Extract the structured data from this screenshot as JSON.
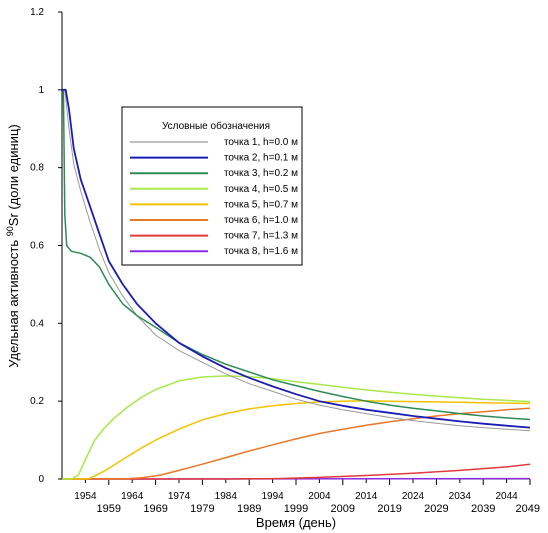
{
  "chart_data": {
    "type": "line",
    "title": "",
    "xlabel": "Время (день)",
    "ylabel_prefix": "Удельная активность ",
    "ylabel_sup": "90",
    "ylabel_suffix": "Sr (доли единиц)",
    "xlim": [
      1949,
      2049
    ],
    "ylim": [
      0,
      1.2
    ],
    "yticks": [
      "0",
      "0.2",
      "0.4",
      "0.6",
      "0.8",
      "1",
      "1.2"
    ],
    "xticks_minor": [
      "1954",
      "1964",
      "1974",
      "1984",
      "1994",
      "2004",
      "2014",
      "2024",
      "2034",
      "2044"
    ],
    "xticks_major": [
      "1959",
      "1969",
      "1979",
      "1989",
      "1999",
      "2009",
      "2019",
      "2029",
      "2039",
      "2049"
    ],
    "legend": {
      "title": "Условные обозначения",
      "position": "center-upper",
      "entries": [
        "точка 1, h=0.0 м",
        "точка 2, h=0.1 м",
        "точка 3, h=0.2 м",
        "точка 4, h=0.5 м",
        "точка 5, h=0.7 м",
        "точка 6, h=1.0 м",
        "точка 7, h=1.3 м",
        "точка 8, h=1.6 м"
      ]
    },
    "series": [
      {
        "name": "точка 1, h=0.0 м",
        "color": "#9a9a9a",
        "x": [
          1949,
          1949.6,
          1950.5,
          1951.5,
          1953,
          1955,
          1957,
          1959,
          1962,
          1965,
          1969,
          1974,
          1979,
          1984,
          1989,
          1994,
          1999,
          2004,
          2009,
          2014,
          2019,
          2024,
          2029,
          2034,
          2039,
          2044,
          2049
        ],
        "y": [
          1.0,
          1.0,
          0.9,
          0.81,
          0.74,
          0.66,
          0.59,
          0.53,
          0.47,
          0.42,
          0.37,
          0.33,
          0.3,
          0.27,
          0.245,
          0.225,
          0.205,
          0.19,
          0.178,
          0.168,
          0.158,
          0.15,
          0.143,
          0.137,
          0.132,
          0.128,
          0.124
        ]
      },
      {
        "name": "точка 2, h=0.1 м",
        "color": "#1c1cb5",
        "x": [
          1949,
          1949.8,
          1950.5,
          1951.5,
          1953,
          1955,
          1957,
          1959,
          1962,
          1965,
          1969,
          1974,
          1979,
          1984,
          1989,
          1994,
          1999,
          2004,
          2009,
          2014,
          2019,
          2024,
          2029,
          2034,
          2039,
          2044,
          2049
        ],
        "y": [
          1.0,
          1.0,
          0.95,
          0.85,
          0.77,
          0.7,
          0.63,
          0.56,
          0.5,
          0.45,
          0.4,
          0.35,
          0.315,
          0.285,
          0.26,
          0.238,
          0.218,
          0.2,
          0.188,
          0.178,
          0.17,
          0.162,
          0.155,
          0.148,
          0.142,
          0.137,
          0.132
        ]
      },
      {
        "name": "точка 3, h=0.2 м",
        "color": "#2e8b57",
        "x": [
          1949,
          1949.3,
          1949.6,
          1950,
          1951,
          1953,
          1955,
          1957,
          1959,
          1962,
          1965,
          1969,
          1974,
          1979,
          1984,
          1989,
          1994,
          1999,
          2004,
          2009,
          2014,
          2019,
          2024,
          2029,
          2034,
          2039,
          2044,
          2049
        ],
        "y": [
          1.0,
          1.0,
          0.68,
          0.6,
          0.585,
          0.58,
          0.57,
          0.545,
          0.5,
          0.45,
          0.42,
          0.39,
          0.35,
          0.32,
          0.295,
          0.275,
          0.255,
          0.24,
          0.225,
          0.212,
          0.2,
          0.19,
          0.182,
          0.175,
          0.168,
          0.162,
          0.157,
          0.153
        ]
      },
      {
        "name": "точка 4, h=0.5 м",
        "color": "#a8e84a",
        "x": [
          1949,
          1951,
          1952.5,
          1954,
          1956,
          1958,
          1960,
          1963,
          1966,
          1969,
          1974,
          1979,
          1984,
          1989,
          1994,
          1999,
          2004,
          2009,
          2014,
          2019,
          2024,
          2029,
          2034,
          2039,
          2044,
          2049
        ],
        "y": [
          0.0,
          0.0,
          0.01,
          0.05,
          0.1,
          0.13,
          0.155,
          0.185,
          0.21,
          0.23,
          0.252,
          0.262,
          0.265,
          0.263,
          0.258,
          0.25,
          0.243,
          0.236,
          0.229,
          0.223,
          0.218,
          0.213,
          0.209,
          0.205,
          0.202,
          0.199
        ]
      },
      {
        "name": "точка 5, h=0.7 м",
        "color": "#f2c200",
        "x": [
          1949,
          1954,
          1955,
          1958,
          1962,
          1966,
          1969,
          1974,
          1979,
          1984,
          1989,
          1994,
          1999,
          2004,
          2009,
          2014,
          2019,
          2024,
          2029,
          2034,
          2039,
          2044,
          2049
        ],
        "y": [
          0.0,
          0.0,
          0.002,
          0.02,
          0.05,
          0.08,
          0.1,
          0.128,
          0.152,
          0.168,
          0.18,
          0.188,
          0.194,
          0.198,
          0.2,
          0.201,
          0.2,
          0.199,
          0.198,
          0.197,
          0.196,
          0.195,
          0.194
        ]
      },
      {
        "name": "точка 6, h=1.0 м",
        "color": "#e8782a",
        "x": [
          1949,
          1962,
          1966,
          1970,
          1974,
          1979,
          1984,
          1989,
          1994,
          1999,
          2004,
          2009,
          2014,
          2019,
          2024,
          2029,
          2034,
          2039,
          2044,
          2049
        ],
        "y": [
          0.0,
          0.0,
          0.003,
          0.01,
          0.022,
          0.038,
          0.055,
          0.072,
          0.088,
          0.103,
          0.117,
          0.128,
          0.138,
          0.147,
          0.155,
          0.162,
          0.168,
          0.173,
          0.178,
          0.182
        ]
      },
      {
        "name": "точка 7, h=1.3 м",
        "color": "#e03a3a",
        "x": [
          1949,
          1985,
          1995,
          2004,
          2014,
          2024,
          2034,
          2044,
          2049
        ],
        "y": [
          0.0,
          0.0,
          0.001,
          0.004,
          0.009,
          0.015,
          0.022,
          0.031,
          0.038
        ]
      },
      {
        "name": "точка 8, h=1.6 м",
        "color": "#8a2be2",
        "x": [
          1949,
          2049
        ],
        "y": [
          0.0,
          0.001
        ]
      }
    ]
  }
}
